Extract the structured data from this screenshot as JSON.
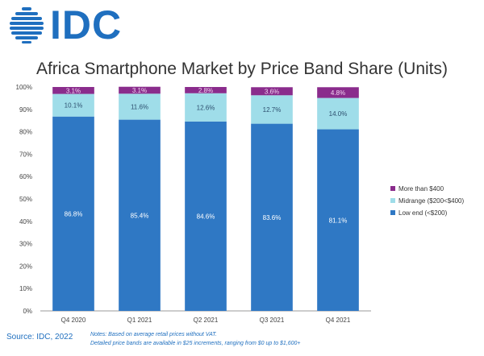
{
  "brand": {
    "logo_text": "IDC"
  },
  "colors": {
    "low_end": "#2f78c4",
    "midrange": "#9fdde9",
    "more_than_400": "#8a2c8c",
    "brand": "#1f6fbf"
  },
  "footer": {
    "source": "Source: IDC, 2022",
    "notes_line1": "Notes:  Based on average retail prices without VAT.",
    "notes_line2": "Detailed price bands are available in $25 increments, ranging from $0 up to $1,600+"
  },
  "chart_data": {
    "type": "bar",
    "stacked": true,
    "title": "Africa Smartphone Market by Price Band Share (Units)",
    "categories": [
      "Q4 2020",
      "Q1 2021",
      "Q2 2021",
      "Q3 2021",
      "Q4 2021"
    ],
    "series": [
      {
        "name": "Low end (<$200)",
        "values": [
          86.8,
          85.4,
          84.6,
          83.6,
          81.1
        ],
        "color": "#2f78c4",
        "label_color": "#ffffff"
      },
      {
        "name": "Midrange ($200<$400)",
        "values": [
          10.1,
          11.6,
          12.6,
          12.7,
          14.0
        ],
        "color": "#9fdde9",
        "label_color": "#2d4f6e"
      },
      {
        "name": "More than $400",
        "values": [
          3.1,
          3.1,
          2.8,
          3.6,
          4.8
        ],
        "color": "#8a2c8c",
        "label_color": "#f2d6f2"
      }
    ],
    "ylim": [
      0,
      100
    ],
    "yticks": [
      "0%",
      "10%",
      "20%",
      "30%",
      "40%",
      "50%",
      "60%",
      "70%",
      "80%",
      "90%",
      "100%"
    ],
    "legend_position": "right",
    "grid": false
  }
}
